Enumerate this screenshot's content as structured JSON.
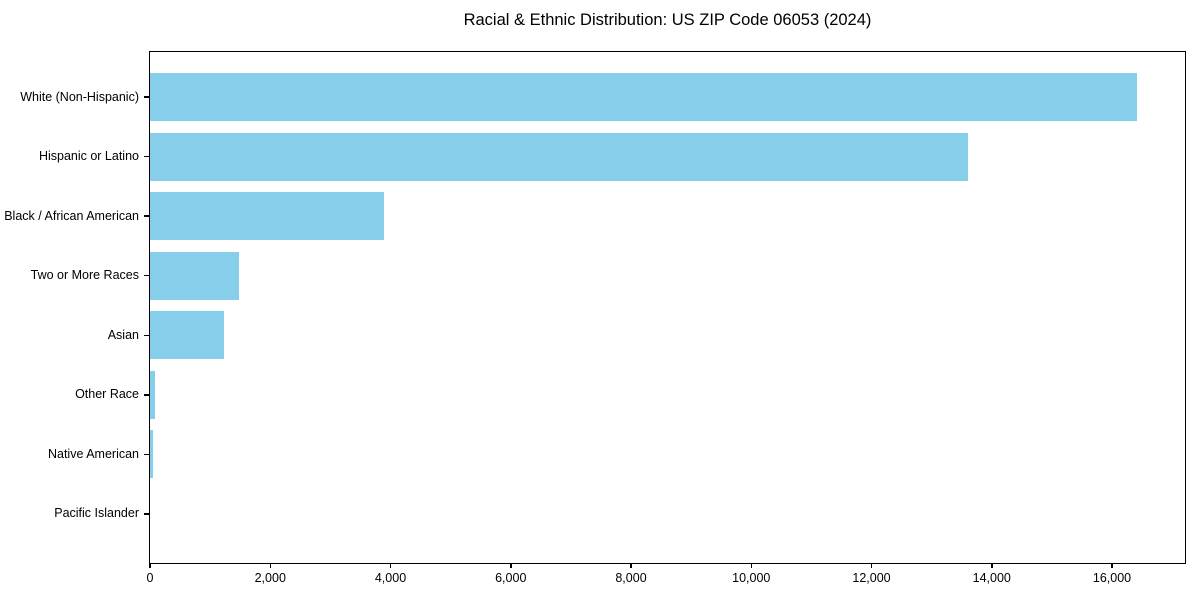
{
  "chart_data": {
    "type": "bar",
    "orientation": "horizontal",
    "title": "Racial & Ethnic Distribution: US ZIP Code 06053 (2024)",
    "categories": [
      "White (Non-Hispanic)",
      "Hispanic or Latino",
      "Black / African American",
      "Two or More Races",
      "Asian",
      "Other Race",
      "Native American",
      "Pacific Islander"
    ],
    "values": [
      16420,
      13600,
      3895,
      1485,
      1225,
      75,
      55,
      0
    ],
    "xlabel": "",
    "ylabel": "",
    "xlim": [
      0,
      17250
    ],
    "xticks": [
      0,
      2000,
      4000,
      6000,
      8000,
      10000,
      12000,
      14000,
      16000
    ],
    "xtick_labels": [
      "0",
      "2,000",
      "4,000",
      "6,000",
      "8,000",
      "10,000",
      "12,000",
      "14,000",
      "16,000"
    ],
    "bar_color": "#87CEEB",
    "text_color": "#000000",
    "grid": false,
    "legend": null
  }
}
